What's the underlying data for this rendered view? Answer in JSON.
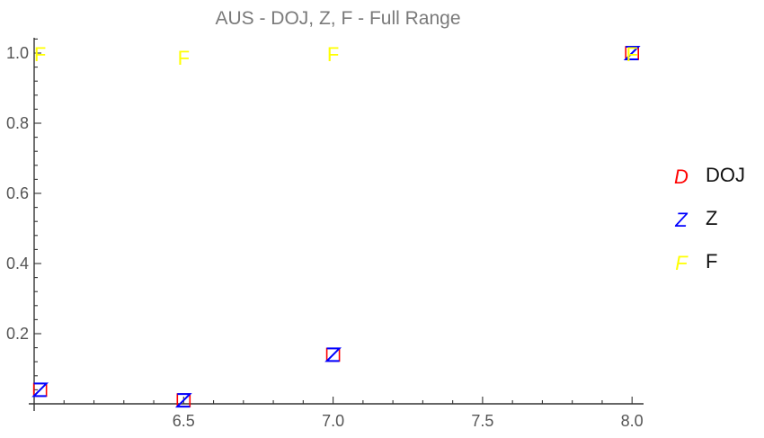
{
  "chart_data": {
    "type": "scatter",
    "title": "AUS - DOJ, Z, F - Full Range",
    "xlabel": "",
    "ylabel": "",
    "xlim": [
      6.0,
      8.05
    ],
    "ylim": [
      0.0,
      1.05
    ],
    "x_ticks": [
      6.5,
      7.0,
      7.5,
      8.0
    ],
    "x_tick_labels": [
      "6.5",
      "7.0",
      "7.5",
      "8.0"
    ],
    "y_ticks": [
      0.2,
      0.4,
      0.6,
      0.8,
      1.0
    ],
    "y_tick_labels": [
      "0.2",
      "0.4",
      "0.6",
      "0.8",
      "1.0"
    ],
    "legend_position": "right",
    "grid": false,
    "series": [
      {
        "name": "DOJ",
        "marker": "D",
        "color": "#ff0000",
        "x": [
          6.02,
          6.5,
          7.0,
          8.0
        ],
        "y": [
          0.04,
          0.01,
          0.14,
          1.0
        ]
      },
      {
        "name": "Z",
        "marker": "Z",
        "color": "#0000ff",
        "x": [
          6.02,
          6.5,
          7.0,
          8.0
        ],
        "y": [
          0.04,
          0.01,
          0.14,
          1.0
        ]
      },
      {
        "name": "F",
        "marker": "F",
        "color": "#ffff00",
        "x": [
          6.02,
          6.5,
          7.0,
          8.0
        ],
        "y": [
          1.0,
          0.99,
          1.0,
          1.0
        ]
      }
    ]
  }
}
